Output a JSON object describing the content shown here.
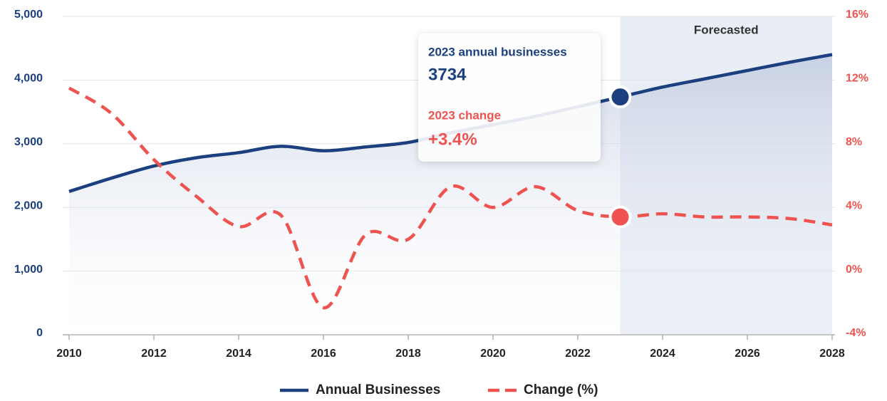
{
  "chart_data": {
    "type": "line",
    "x": [
      2010,
      2011,
      2012,
      2013,
      2014,
      2015,
      2016,
      2017,
      2018,
      2019,
      2020,
      2021,
      2022,
      2023,
      2024,
      2025,
      2026,
      2027,
      2028
    ],
    "series": [
      {
        "name": "Annual Businesses",
        "color": "#1b3f7f",
        "axis": "y",
        "values": [
          2250,
          2460,
          2650,
          2780,
          2860,
          2960,
          2890,
          2950,
          3020,
          3170,
          3300,
          3430,
          3580,
          3734,
          3890,
          4020,
          4150,
          4280,
          4400
        ]
      },
      {
        "name": "Change (%)",
        "color": "#ef5350",
        "axis": "y2",
        "dashed": true,
        "values": [
          11.5,
          9.9,
          7.0,
          4.7,
          2.8,
          3.5,
          -2.3,
          2.3,
          2.0,
          5.3,
          4.0,
          5.3,
          3.8,
          3.4,
          3.6,
          3.4,
          3.4,
          3.3,
          2.9
        ]
      }
    ],
    "xlim": [
      2010,
      2028
    ],
    "xticks": [
      2010,
      2012,
      2014,
      2016,
      2018,
      2020,
      2022,
      2024,
      2026,
      2028
    ],
    "ylim": [
      0,
      5000
    ],
    "yticks": [
      0,
      {
        "value": 1000,
        "label": "1,000"
      },
      {
        "value": 2000,
        "label": "2,000"
      },
      {
        "value": 3000,
        "label": "3,000"
      },
      {
        "value": 4000,
        "label": "4,000"
      },
      {
        "value": 5000,
        "label": "5,000"
      }
    ],
    "y2lim": [
      -4,
      16
    ],
    "y2ticks": [
      {
        "value": -4,
        "label": "-4%"
      },
      {
        "value": 0,
        "label": "0%"
      },
      {
        "value": 4,
        "label": "4%"
      },
      {
        "value": 8,
        "label": "8%"
      },
      {
        "value": 12,
        "label": "12%"
      },
      {
        "value": 16,
        "label": "16%"
      }
    ],
    "grid": true,
    "legend": "bottom",
    "forecast": {
      "label": "Forecasted",
      "from": 2023,
      "to": 2028
    },
    "tooltip": {
      "index": 13,
      "title": "2023 annual businesses",
      "value": "3734",
      "change_title": "2023 change",
      "change": "+3.4%"
    }
  }
}
